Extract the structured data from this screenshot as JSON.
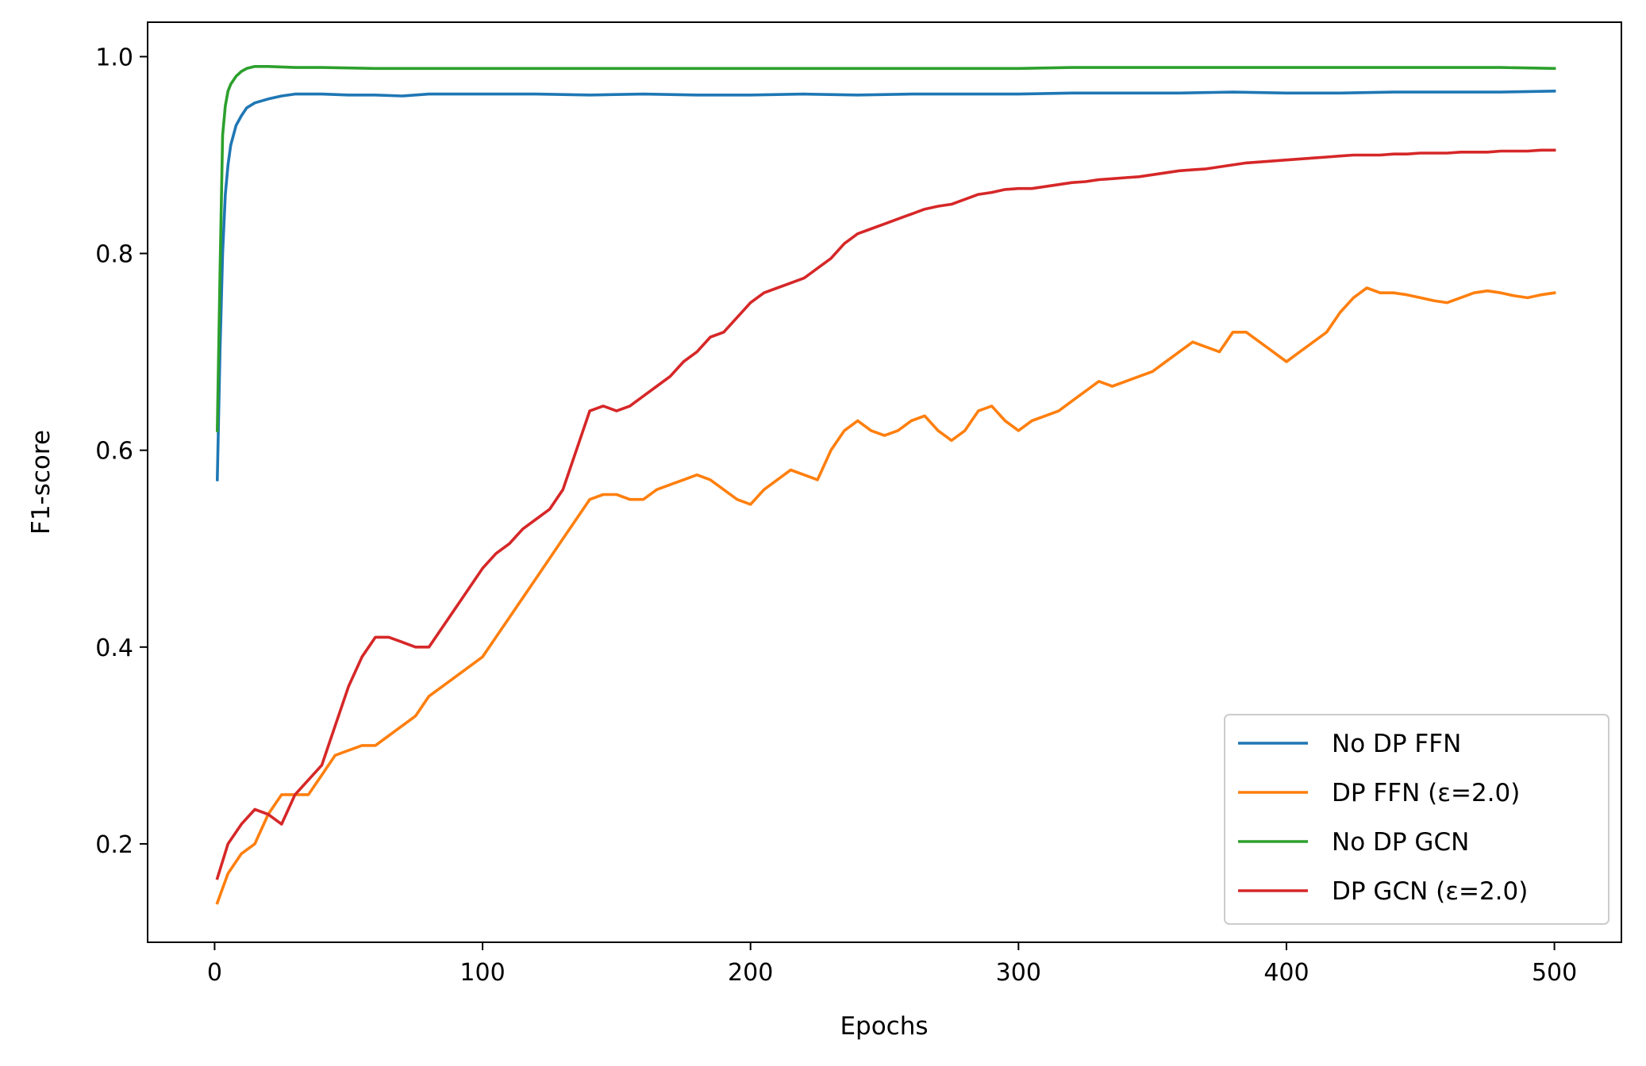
{
  "chart_data": {
    "type": "line",
    "title": "",
    "xlabel": "Epochs",
    "ylabel": "F1-score",
    "xlim": [
      -25,
      525
    ],
    "ylim": [
      0.1,
      1.035
    ],
    "xticks": [
      0,
      100,
      200,
      300,
      400,
      500
    ],
    "xtick_labels": [
      "0",
      "100",
      "200",
      "300",
      "400",
      "500"
    ],
    "yticks": [
      0.2,
      0.4,
      0.6,
      0.8,
      1.0
    ],
    "ytick_labels": [
      "0.2",
      "0.4",
      "0.6",
      "0.8",
      "1.0"
    ],
    "grid": false,
    "legend_position": "lower-right",
    "series": [
      {
        "name": "No DP FFN",
        "color": "#1f77b4",
        "points": [
          [
            1,
            0.57
          ],
          [
            2,
            0.7
          ],
          [
            3,
            0.8
          ],
          [
            4,
            0.86
          ],
          [
            5,
            0.89
          ],
          [
            6,
            0.91
          ],
          [
            8,
            0.93
          ],
          [
            10,
            0.94
          ],
          [
            12,
            0.948
          ],
          [
            15,
            0.953
          ],
          [
            20,
            0.957
          ],
          [
            25,
            0.96
          ],
          [
            30,
            0.962
          ],
          [
            40,
            0.962
          ],
          [
            50,
            0.961
          ],
          [
            60,
            0.961
          ],
          [
            70,
            0.96
          ],
          [
            80,
            0.962
          ],
          [
            100,
            0.962
          ],
          [
            120,
            0.962
          ],
          [
            140,
            0.961
          ],
          [
            160,
            0.962
          ],
          [
            180,
            0.961
          ],
          [
            200,
            0.961
          ],
          [
            220,
            0.962
          ],
          [
            240,
            0.961
          ],
          [
            260,
            0.962
          ],
          [
            280,
            0.962
          ],
          [
            300,
            0.962
          ],
          [
            320,
            0.963
          ],
          [
            340,
            0.963
          ],
          [
            360,
            0.963
          ],
          [
            380,
            0.964
          ],
          [
            400,
            0.963
          ],
          [
            420,
            0.963
          ],
          [
            440,
            0.964
          ],
          [
            460,
            0.964
          ],
          [
            480,
            0.964
          ],
          [
            500,
            0.965
          ]
        ]
      },
      {
        "name": "DP FFN (ε=2.0)",
        "color": "#ff7f0e",
        "points": [
          [
            1,
            0.14
          ],
          [
            5,
            0.17
          ],
          [
            10,
            0.19
          ],
          [
            15,
            0.2
          ],
          [
            20,
            0.23
          ],
          [
            25,
            0.25
          ],
          [
            30,
            0.25
          ],
          [
            35,
            0.25
          ],
          [
            40,
            0.27
          ],
          [
            45,
            0.29
          ],
          [
            50,
            0.295
          ],
          [
            55,
            0.3
          ],
          [
            60,
            0.3
          ],
          [
            65,
            0.31
          ],
          [
            70,
            0.32
          ],
          [
            75,
            0.33
          ],
          [
            80,
            0.35
          ],
          [
            85,
            0.36
          ],
          [
            90,
            0.37
          ],
          [
            95,
            0.38
          ],
          [
            100,
            0.39
          ],
          [
            105,
            0.41
          ],
          [
            110,
            0.43
          ],
          [
            115,
            0.45
          ],
          [
            120,
            0.47
          ],
          [
            125,
            0.49
          ],
          [
            130,
            0.51
          ],
          [
            135,
            0.53
          ],
          [
            140,
            0.55
          ],
          [
            145,
            0.555
          ],
          [
            150,
            0.555
          ],
          [
            155,
            0.55
          ],
          [
            160,
            0.55
          ],
          [
            165,
            0.56
          ],
          [
            170,
            0.565
          ],
          [
            175,
            0.57
          ],
          [
            180,
            0.575
          ],
          [
            185,
            0.57
          ],
          [
            190,
            0.56
          ],
          [
            195,
            0.55
          ],
          [
            200,
            0.545
          ],
          [
            205,
            0.56
          ],
          [
            210,
            0.57
          ],
          [
            215,
            0.58
          ],
          [
            220,
            0.575
          ],
          [
            225,
            0.57
          ],
          [
            230,
            0.6
          ],
          [
            235,
            0.62
          ],
          [
            240,
            0.63
          ],
          [
            245,
            0.62
          ],
          [
            250,
            0.615
          ],
          [
            255,
            0.62
          ],
          [
            260,
            0.63
          ],
          [
            265,
            0.635
          ],
          [
            270,
            0.62
          ],
          [
            275,
            0.61
          ],
          [
            280,
            0.62
          ],
          [
            285,
            0.64
          ],
          [
            290,
            0.645
          ],
          [
            295,
            0.63
          ],
          [
            300,
            0.62
          ],
          [
            305,
            0.63
          ],
          [
            310,
            0.635
          ],
          [
            315,
            0.64
          ],
          [
            320,
            0.65
          ],
          [
            325,
            0.66
          ],
          [
            330,
            0.67
          ],
          [
            335,
            0.665
          ],
          [
            340,
            0.67
          ],
          [
            345,
            0.675
          ],
          [
            350,
            0.68
          ],
          [
            355,
            0.69
          ],
          [
            360,
            0.7
          ],
          [
            365,
            0.71
          ],
          [
            370,
            0.705
          ],
          [
            375,
            0.7
          ],
          [
            380,
            0.72
          ],
          [
            385,
            0.72
          ],
          [
            390,
            0.71
          ],
          [
            395,
            0.7
          ],
          [
            400,
            0.69
          ],
          [
            405,
            0.7
          ],
          [
            410,
            0.71
          ],
          [
            415,
            0.72
          ],
          [
            420,
            0.74
          ],
          [
            425,
            0.755
          ],
          [
            430,
            0.765
          ],
          [
            435,
            0.76
          ],
          [
            440,
            0.76
          ],
          [
            445,
            0.758
          ],
          [
            450,
            0.755
          ],
          [
            455,
            0.752
          ],
          [
            460,
            0.75
          ],
          [
            465,
            0.755
          ],
          [
            470,
            0.76
          ],
          [
            475,
            0.762
          ],
          [
            480,
            0.76
          ],
          [
            485,
            0.757
          ],
          [
            490,
            0.755
          ],
          [
            495,
            0.758
          ],
          [
            500,
            0.76
          ]
        ]
      },
      {
        "name": "No DP GCN",
        "color": "#2ca02c",
        "points": [
          [
            1,
            0.62
          ],
          [
            2,
            0.78
          ],
          [
            3,
            0.92
          ],
          [
            4,
            0.95
          ],
          [
            5,
            0.965
          ],
          [
            6,
            0.972
          ],
          [
            8,
            0.98
          ],
          [
            10,
            0.985
          ],
          [
            12,
            0.988
          ],
          [
            15,
            0.99
          ],
          [
            20,
            0.99
          ],
          [
            30,
            0.989
          ],
          [
            40,
            0.989
          ],
          [
            60,
            0.988
          ],
          [
            80,
            0.988
          ],
          [
            100,
            0.988
          ],
          [
            120,
            0.988
          ],
          [
            140,
            0.988
          ],
          [
            160,
            0.988
          ],
          [
            180,
            0.988
          ],
          [
            200,
            0.988
          ],
          [
            220,
            0.988
          ],
          [
            240,
            0.988
          ],
          [
            260,
            0.988
          ],
          [
            280,
            0.988
          ],
          [
            300,
            0.988
          ],
          [
            320,
            0.989
          ],
          [
            340,
            0.989
          ],
          [
            360,
            0.989
          ],
          [
            380,
            0.989
          ],
          [
            400,
            0.989
          ],
          [
            420,
            0.989
          ],
          [
            440,
            0.989
          ],
          [
            460,
            0.989
          ],
          [
            480,
            0.989
          ],
          [
            500,
            0.988
          ]
        ]
      },
      {
        "name": "DP GCN (ε=2.0)",
        "color": "#d62728",
        "points": [
          [
            1,
            0.165
          ],
          [
            5,
            0.2
          ],
          [
            10,
            0.22
          ],
          [
            15,
            0.235
          ],
          [
            20,
            0.23
          ],
          [
            25,
            0.22
          ],
          [
            30,
            0.25
          ],
          [
            35,
            0.265
          ],
          [
            40,
            0.28
          ],
          [
            45,
            0.32
          ],
          [
            50,
            0.36
          ],
          [
            55,
            0.39
          ],
          [
            60,
            0.41
          ],
          [
            65,
            0.41
          ],
          [
            70,
            0.405
          ],
          [
            75,
            0.4
          ],
          [
            80,
            0.4
          ],
          [
            85,
            0.42
          ],
          [
            90,
            0.44
          ],
          [
            95,
            0.46
          ],
          [
            100,
            0.48
          ],
          [
            105,
            0.495
          ],
          [
            110,
            0.505
          ],
          [
            115,
            0.52
          ],
          [
            120,
            0.53
          ],
          [
            125,
            0.54
          ],
          [
            130,
            0.56
          ],
          [
            135,
            0.6
          ],
          [
            140,
            0.64
          ],
          [
            145,
            0.645
          ],
          [
            150,
            0.64
          ],
          [
            155,
            0.645
          ],
          [
            160,
            0.655
          ],
          [
            165,
            0.665
          ],
          [
            170,
            0.675
          ],
          [
            175,
            0.69
          ],
          [
            180,
            0.7
          ],
          [
            185,
            0.715
          ],
          [
            190,
            0.72
          ],
          [
            195,
            0.735
          ],
          [
            200,
            0.75
          ],
          [
            205,
            0.76
          ],
          [
            210,
            0.765
          ],
          [
            215,
            0.77
          ],
          [
            220,
            0.775
          ],
          [
            225,
            0.785
          ],
          [
            230,
            0.795
          ],
          [
            235,
            0.81
          ],
          [
            240,
            0.82
          ],
          [
            245,
            0.825
          ],
          [
            250,
            0.83
          ],
          [
            255,
            0.835
          ],
          [
            260,
            0.84
          ],
          [
            265,
            0.845
          ],
          [
            270,
            0.848
          ],
          [
            275,
            0.85
          ],
          [
            280,
            0.855
          ],
          [
            285,
            0.86
          ],
          [
            290,
            0.862
          ],
          [
            295,
            0.865
          ],
          [
            300,
            0.866
          ],
          [
            305,
            0.866
          ],
          [
            310,
            0.868
          ],
          [
            315,
            0.87
          ],
          [
            320,
            0.872
          ],
          [
            325,
            0.873
          ],
          [
            330,
            0.875
          ],
          [
            335,
            0.876
          ],
          [
            340,
            0.877
          ],
          [
            345,
            0.878
          ],
          [
            350,
            0.88
          ],
          [
            355,
            0.882
          ],
          [
            360,
            0.884
          ],
          [
            365,
            0.885
          ],
          [
            370,
            0.886
          ],
          [
            375,
            0.888
          ],
          [
            380,
            0.89
          ],
          [
            385,
            0.892
          ],
          [
            390,
            0.893
          ],
          [
            395,
            0.894
          ],
          [
            400,
            0.895
          ],
          [
            405,
            0.896
          ],
          [
            410,
            0.897
          ],
          [
            415,
            0.898
          ],
          [
            420,
            0.899
          ],
          [
            425,
            0.9
          ],
          [
            430,
            0.9
          ],
          [
            435,
            0.9
          ],
          [
            440,
            0.901
          ],
          [
            445,
            0.901
          ],
          [
            450,
            0.902
          ],
          [
            455,
            0.902
          ],
          [
            460,
            0.902
          ],
          [
            465,
            0.903
          ],
          [
            470,
            0.903
          ],
          [
            475,
            0.903
          ],
          [
            480,
            0.904
          ],
          [
            485,
            0.904
          ],
          [
            490,
            0.904
          ],
          [
            495,
            0.905
          ],
          [
            500,
            0.905
          ]
        ]
      }
    ]
  }
}
